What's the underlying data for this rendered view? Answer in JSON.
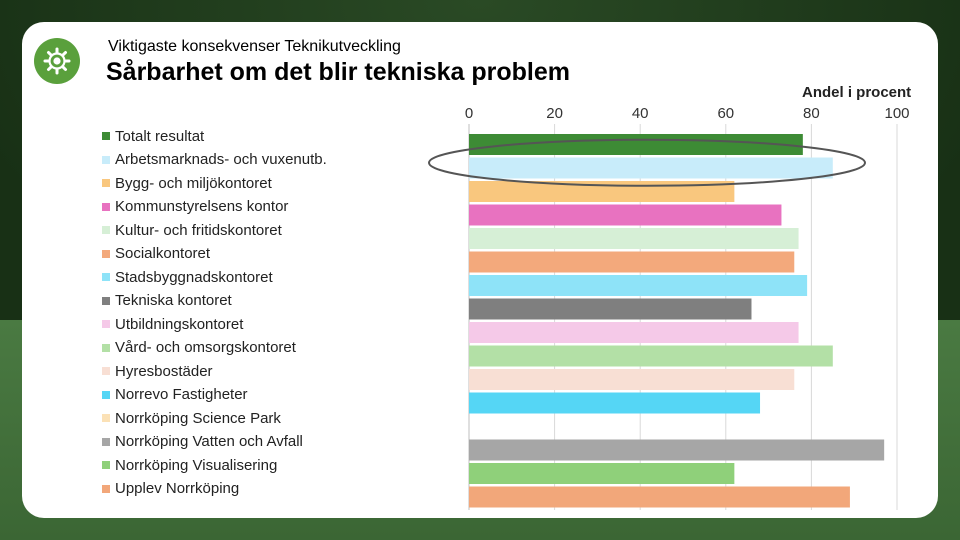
{
  "header": {
    "subtitle": "Viktigaste konsekvenser Teknikutveckling",
    "title": "Sårbarhet om det blir tekniska problem",
    "logo_icon": "gear-icon"
  },
  "colors": {
    "logo": "#5aa03c",
    "highlight_ellipse": "#555555"
  },
  "chart_data": {
    "type": "bar",
    "orientation": "horizontal",
    "title": "Sårbarhet om det blir tekniska problem",
    "xlabel": "Andel i procent",
    "xlim": [
      0,
      100
    ],
    "ticks": [
      0,
      20,
      40,
      60,
      80,
      100
    ],
    "grid": true,
    "legend": "left",
    "highlighted_category": "Arbetsmarknads- och vuxenutb.",
    "categories": [
      "Totalt resultat",
      "Arbetsmarknads- och vuxenutb.",
      "Bygg- och miljökontoret",
      "Kommunstyrelsens kontor",
      "Kultur- och fritidskontoret",
      "Socialkontoret",
      "Stadsbyggnadskontoret",
      "Tekniska kontoret",
      "Utbildningskontoret",
      "Vård- och omsorgskontoret",
      "Hyresbostäder",
      "Norrevo Fastigheter",
      "Norrköping Science Park",
      "Norrköping Vatten och Avfall",
      "Norrköping Visualisering",
      "Upplev Norrköping"
    ],
    "values": [
      78,
      85,
      62,
      73,
      77,
      76,
      79,
      66,
      77,
      85,
      76,
      68,
      0,
      97,
      62,
      89
    ],
    "colors": [
      "#3d8b35",
      "#c8ecfa",
      "#f9c77e",
      "#e872c0",
      "#d6efd6",
      "#f3a97c",
      "#8ee3f8",
      "#7f7f7f",
      "#f5c9e8",
      "#b3e0a6",
      "#f8dfd4",
      "#55d6f5",
      "#fbe1b6",
      "#a6a6a6",
      "#8fd07a",
      "#f2a77a"
    ]
  }
}
